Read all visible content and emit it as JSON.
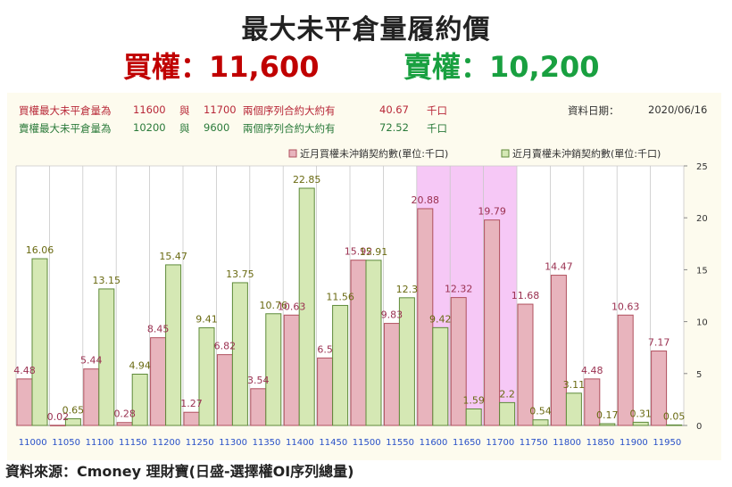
{
  "header": {
    "title": "最大未平倉量履約價",
    "call_text": "買權：11,600",
    "put_text": "賣權：10,200"
  },
  "info": {
    "call_line": {
      "label": "買權最大未平倉量為",
      "v1": "11600",
      "conj": "與",
      "v2": "11700",
      "desc": "兩個序列合約大約有",
      "amount": "40.67",
      "unit": "千口"
    },
    "put_line": {
      "label": "賣權最大未平倉量為",
      "v1": "10200",
      "conj": "與",
      "v2": "9600",
      "desc": "兩個序列合約大約有",
      "amount": "72.52",
      "unit": "千口"
    },
    "date_label": "資料日期：",
    "date_value": "2020/06/16"
  },
  "source": "資料來源：Cmoney 理財寶(日盛-選擇權OI序列總量)",
  "colors": {
    "call_fill": "#e8b4bd",
    "call_stroke": "#b0505e",
    "put_fill": "#d5e8b4",
    "put_stroke": "#5e8a3a",
    "highlight": "#f6c8f6",
    "panel_bg": "#fdfbee"
  },
  "chart_data": {
    "type": "bar",
    "categories": [
      "11000",
      "11050",
      "11100",
      "11150",
      "11200",
      "11250",
      "11300",
      "11350",
      "11400",
      "11450",
      "11500",
      "11550",
      "11600",
      "11650",
      "11700",
      "11750",
      "11800",
      "11850",
      "11900",
      "11950"
    ],
    "series": [
      {
        "name": "近月買權未沖銷契約數(單位:千口)",
        "values": [
          4.48,
          0.02,
          5.44,
          0.28,
          8.45,
          1.27,
          6.82,
          3.54,
          10.63,
          6.5,
          15.92,
          9.83,
          20.88,
          12.32,
          19.79,
          11.68,
          14.47,
          4.48,
          10.63,
          7.17
        ]
      },
      {
        "name": "近月賣權未沖銷契約數(單位:千口)",
        "values": [
          16.06,
          0.65,
          13.15,
          4.94,
          15.47,
          9.41,
          13.75,
          10.76,
          22.85,
          11.56,
          15.91,
          12.3,
          9.42,
          1.59,
          2.2,
          0.54,
          3.11,
          0.17,
          0.31,
          0.05
        ]
      }
    ],
    "labels_call": [
      "4.48",
      "0.02",
      "5.44",
      "0.28",
      "8.45",
      "1.27",
      "6.82",
      "3.54",
      "10.63",
      "6.5",
      "15.92",
      "9.83",
      "20.88",
      "12.32",
      "19.79",
      "11.68",
      "14.47",
      "4.48",
      "10.63",
      "7.17"
    ],
    "labels_put": [
      "16.06",
      "0.65",
      "13.15",
      "4.94",
      "15.47",
      "9.41",
      "13.75",
      "10.76",
      "22.85",
      "11.56",
      "15.91",
      "12.3",
      "9.42",
      "1.59",
      "2.2",
      "0.54",
      "3.11",
      "0.17",
      "0.31",
      "0.05"
    ],
    "ylim": [
      0,
      25
    ],
    "yticks": [
      "0",
      "5",
      "10",
      "15",
      "20",
      "25"
    ],
    "highlight_range": [
      "11600",
      "11700"
    ],
    "grid": true,
    "legend_position": "top-right"
  }
}
